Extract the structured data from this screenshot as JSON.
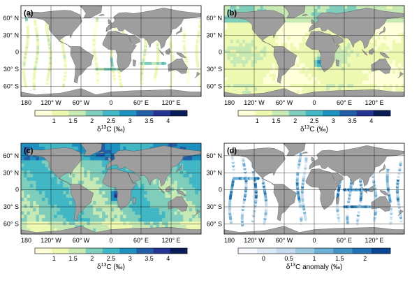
{
  "panels": [
    {
      "label": "(a)",
      "field": "sparse"
    },
    {
      "label": "(b)",
      "field": "surface"
    },
    {
      "label": "(c)",
      "field": "full"
    },
    {
      "label": "(d)",
      "field": "anomaly"
    }
  ],
  "lat_labels": [
    "60° N",
    "30° N",
    "0",
    "30° S",
    "60° S"
  ],
  "lon_labels_a": [
    "180",
    "120° W",
    "60° W",
    "0",
    "60° E",
    "120° E"
  ],
  "lon_labels_b": [
    "180",
    "120° W",
    "60° W",
    "0",
    "60° E",
    "120° E"
  ],
  "lon_labels_c": [
    "180",
    "120° W",
    "60° W",
    "0",
    "60° E",
    "120° E"
  ],
  "lon_labels_d": [
    "180",
    "120° W",
    "60° W",
    "0",
    "60° E",
    "120° E"
  ],
  "colorbars": [
    {
      "ticks": [
        "1",
        "1.5",
        "2",
        "2.5",
        "3",
        "3.5",
        "4"
      ],
      "title_main": "δ",
      "title_sup": "13",
      "title_rest": "C  (‰)"
    },
    {
      "ticks": [
        "1",
        "1.5",
        "2",
        "2.5",
        "3",
        "3.5",
        "4"
      ],
      "title_main": "δ",
      "title_sup": "13",
      "title_rest": "C  (‰)"
    },
    {
      "ticks": [
        "1",
        "1.5",
        "2",
        "2.5",
        "3",
        "3.5",
        "4"
      ],
      "title_main": "δ",
      "title_sup": "13",
      "title_rest": "C  (‰)"
    },
    {
      "ticks": [
        "0",
        "0.5",
        "1",
        "1.5",
        "2"
      ],
      "title_main": "δ",
      "title_sup": "13",
      "title_rest": "C anomaly  (‰)"
    }
  ],
  "colors": {
    "land": "#9e9e9e",
    "ocean_bg": "#ffffff",
    "seq": [
      "#ffffd9",
      "#edf8b1",
      "#c7e9b4",
      "#7fcdbb",
      "#41b6c4",
      "#1d91c0",
      "#225ea8",
      "#253494",
      "#081d58"
    ],
    "blues": [
      "#f7fbff",
      "#deebf7",
      "#c6dbef",
      "#9ecae1",
      "#6baed6",
      "#4292c6",
      "#2171b5",
      "#084594"
    ]
  }
}
